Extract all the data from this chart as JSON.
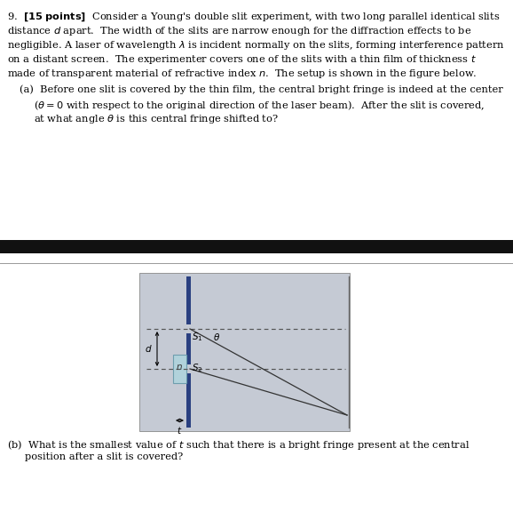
{
  "bg_color": "#ffffff",
  "dark_bar_color": "#2a4080",
  "film_color": "#afd4dc",
  "film_border_color": "#6699aa",
  "diagram_bg": "#c5cad4",
  "text_color": "#000000",
  "header_bar_color": "#111111",
  "separator_color": "#999999",
  "screen_color": "#666666",
  "line_color": "#333333",
  "dash_color": "#555555"
}
